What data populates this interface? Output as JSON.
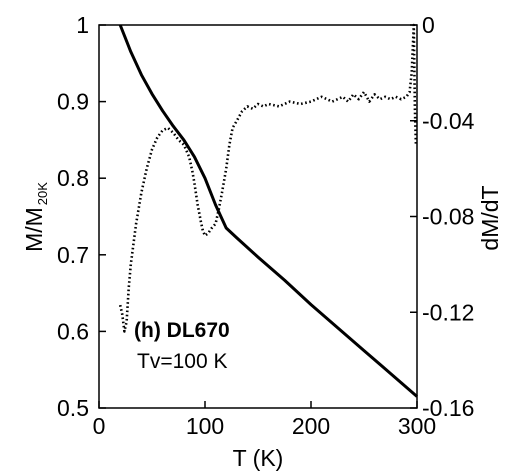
{
  "chart_data": {
    "type": "line",
    "xlabel": "T (K)",
    "ylabel_left_main": "M/M",
    "ylabel_left_sub": "20K",
    "ylabel_right": "dM/dT",
    "xlim": [
      0,
      300
    ],
    "ylim_left": [
      0.5,
      1.0
    ],
    "ylim_right": [
      -0.16,
      0.0
    ],
    "x_ticks": [
      0,
      100,
      200,
      300
    ],
    "x_tick_labels": [
      "0",
      "100",
      "200",
      "300"
    ],
    "y_left_ticks": [
      0.5,
      0.6,
      0.7,
      0.8,
      0.9,
      1.0
    ],
    "y_left_tick_labels": [
      "0.5",
      "0.6",
      "0.7",
      "0.8",
      "0.9",
      "1"
    ],
    "y_right_ticks": [
      0.0,
      -0.04,
      -0.08,
      -0.12,
      -0.16
    ],
    "y_right_tick_labels": [
      "0",
      "-0.04",
      "-0.08",
      "-0.12",
      "-0.16"
    ],
    "grid": false,
    "annotations": [
      "(h) DL670",
      "Tv=100 K"
    ],
    "series": [
      {
        "axis": "left",
        "style": "solid",
        "x": [
          20,
          30,
          40,
          50,
          60,
          70,
          80,
          90,
          100,
          110,
          120,
          130,
          150,
          175,
          200,
          225,
          250,
          275,
          300
        ],
        "y": [
          1.0,
          0.965,
          0.935,
          0.91,
          0.888,
          0.868,
          0.85,
          0.828,
          0.8,
          0.765,
          0.735,
          0.722,
          0.697,
          0.667,
          0.635,
          0.605,
          0.575,
          0.545,
          0.515
        ]
      },
      {
        "axis": "right",
        "style": "dotted",
        "x": [
          20,
          22,
          24,
          26,
          28,
          30,
          35,
          40,
          45,
          50,
          55,
          60,
          65,
          70,
          75,
          80,
          85,
          88,
          90,
          93,
          96,
          98,
          100,
          103,
          106,
          110,
          113,
          116,
          120,
          123,
          126,
          130,
          135,
          140,
          145,
          150,
          155,
          160,
          170,
          180,
          190,
          200,
          210,
          220,
          230,
          235,
          240,
          245,
          250,
          255,
          260,
          265,
          270,
          275,
          280,
          285,
          290,
          293,
          295,
          297,
          298,
          299,
          300
        ],
        "y": [
          -0.117,
          -0.121,
          -0.128,
          -0.124,
          -0.11,
          -0.1,
          -0.083,
          -0.07,
          -0.06,
          -0.052,
          -0.047,
          -0.044,
          -0.043,
          -0.045,
          -0.048,
          -0.05,
          -0.055,
          -0.061,
          -0.066,
          -0.075,
          -0.082,
          -0.086,
          -0.088,
          -0.087,
          -0.085,
          -0.083,
          -0.077,
          -0.07,
          -0.06,
          -0.05,
          -0.043,
          -0.04,
          -0.036,
          -0.034,
          -0.035,
          -0.033,
          -0.034,
          -0.033,
          -0.034,
          -0.032,
          -0.033,
          -0.032,
          -0.03,
          -0.032,
          -0.03,
          -0.032,
          -0.029,
          -0.031,
          -0.028,
          -0.032,
          -0.029,
          -0.031,
          -0.03,
          -0.031,
          -0.03,
          -0.031,
          -0.03,
          -0.028,
          -0.02,
          0.0,
          -0.035,
          -0.05,
          -0.05
        ]
      }
    ]
  }
}
